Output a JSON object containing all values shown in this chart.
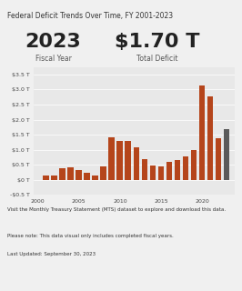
{
  "title": "Federal Deficit Trends Over Time, FY 2001-2023",
  "highlight_year": "2023",
  "highlight_label": "Fiscal Year",
  "highlight_value": "$1.70 T",
  "highlight_value_label": "Total Deficit",
  "years": [
    2001,
    2002,
    2003,
    2004,
    2005,
    2006,
    2007,
    2008,
    2009,
    2010,
    2011,
    2012,
    2013,
    2014,
    2015,
    2016,
    2017,
    2018,
    2019,
    2020,
    2021,
    2022,
    2023
  ],
  "deficits": [
    0.133,
    0.158,
    0.374,
    0.413,
    0.318,
    0.248,
    0.161,
    0.459,
    1.413,
    1.294,
    1.3,
    1.087,
    0.68,
    0.485,
    0.438,
    0.585,
    0.665,
    0.779,
    0.984,
    3.132,
    2.772,
    1.375,
    1.695
  ],
  "bar_color_orange": "#b5451b",
  "bar_color_gray": "#5a5a5a",
  "bg_color": "#f0f0f0",
  "plot_bg_color": "#e8e8e8",
  "footer_text1": "Visit the Monthly Treasury Statement (MTS) dataset to explore and download this data.",
  "footer_text2": "Please note: This data visual only includes completed fiscal years.",
  "footer_text3": "Last Updated: September 30, 2023",
  "ylim_min": -0.5,
  "ylim_max": 3.75,
  "yticks": [
    -0.5,
    0.0,
    0.5,
    1.0,
    1.5,
    2.0,
    2.5,
    3.0,
    3.5
  ],
  "ytick_labels": [
    "-$0.5 T",
    "$0 T",
    "$0.5 T",
    "$1.0 T",
    "$1.5 T",
    "$2.0 T",
    "$2.5 T",
    "$3.0 T",
    "$3.5 T"
  ],
  "xticks": [
    2000,
    2005,
    2010,
    2015,
    2020
  ]
}
